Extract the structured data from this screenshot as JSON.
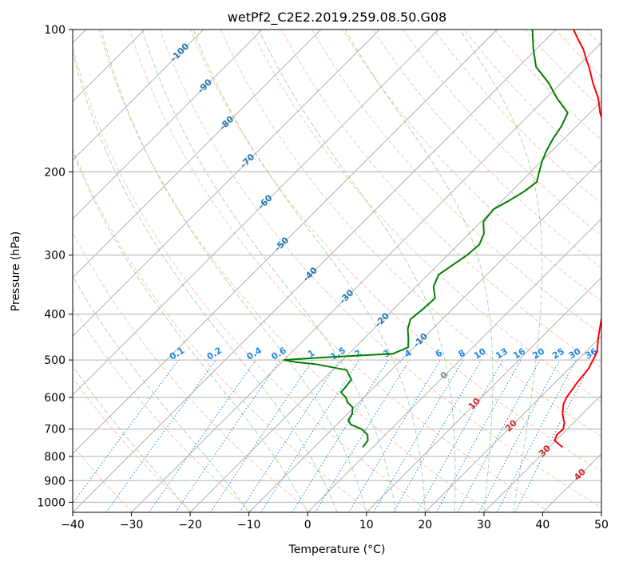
{
  "chart_data": {
    "type": "skew-t",
    "title": "wetPf2_C2E2.2019.259.08.50.G08",
    "xlabel": "Temperature (°C)",
    "ylabel": "Pressure (hPa)",
    "xlim": [
      -40,
      50
    ],
    "ylim": [
      1050,
      100
    ],
    "y_scale": "log",
    "grid": true,
    "x_ticks": [
      "−40",
      "−30",
      "−20",
      "−10",
      "0",
      "10",
      "20",
      "30",
      "40",
      "50"
    ],
    "y_ticks": [
      "100",
      "200",
      "300",
      "400",
      "500",
      "600",
      "700",
      "800",
      "900",
      "1000"
    ],
    "colors": {
      "temperature": "#ff0000",
      "dewpoint": "#008000",
      "mixing_ratio": "#1e88e5",
      "dry_adiabat": "#ff7f50",
      "moist_adiabat": "#2ca02c",
      "isotherm_blue": "#1f77b4",
      "isotherm_red": "#d62728",
      "isotherm_gray": "#7f7f7f"
    },
    "isotherm_labels_blue": [
      "-100",
      "-90",
      "-80",
      "-70",
      "-60",
      "-50",
      "-40",
      "-30",
      "-20",
      "-10"
    ],
    "isotherm_label_gray": "0",
    "isotherm_labels_red": [
      "10",
      "20",
      "30",
      "40"
    ],
    "mixing_ratio_labels": [
      "0.1",
      "0.2",
      "0.4",
      "0.6",
      "1",
      "1.5",
      "2",
      "3",
      "4",
      "6",
      "8",
      "10",
      "13",
      "16",
      "20",
      "25",
      "30",
      "36"
    ],
    "series": [
      {
        "name": "",
        "role": "temperature",
        "p": [
          765,
          740,
          720,
          700,
          680,
          650,
          620,
          600,
          560,
          520,
          480,
          450,
          420,
          400,
          380,
          350,
          320,
          300,
          280,
          260,
          240,
          225,
          210,
          200,
          190,
          180,
          170,
          160,
          150,
          140,
          130,
          120,
          115,
          110,
          105,
          100
        ],
        "t": [
          32.3,
          29.8,
          29.2,
          29.3,
          28.5,
          26.6,
          25.1,
          24.5,
          23.8,
          23.3,
          21.9,
          19.8,
          17.8,
          16.4,
          14.5,
          11.8,
          8.8,
          6.6,
          4.6,
          2.9,
          0.5,
          -1.7,
          -4.2,
          -5.9,
          -7.8,
          -10.0,
          -12.5,
          -15.3,
          -18.3,
          -21.0,
          -24.5,
          -28.0,
          -30.0,
          -32.0,
          -34.5,
          -37.0
        ]
      },
      {
        "name": "",
        "role": "dewpoint",
        "p": [
          765,
          740,
          720,
          700,
          685,
          670,
          650,
          630,
          615,
          600,
          585,
          570,
          550,
          525,
          510,
          505,
          500,
          498,
          495,
          490,
          485,
          470,
          450,
          430,
          410,
          390,
          370,
          350,
          330,
          300,
          285,
          270,
          255,
          240,
          230,
          220,
          210,
          200,
          190,
          180,
          170,
          160,
          150,
          140,
          130,
          120,
          110,
          100
        ],
        "t": [
          -1.7,
          -2.0,
          -3.0,
          -5.0,
          -7.6,
          -8.8,
          -9.2,
          -10.2,
          -11.9,
          -13.1,
          -14.8,
          -14.9,
          -15.2,
          -17.6,
          -24.0,
          -27.7,
          -30.0,
          -28.2,
          -25.0,
          -18.8,
          -12.5,
          -11.0,
          -12.5,
          -14.2,
          -15.4,
          -15.0,
          -14.8,
          -17.0,
          -18.2,
          -16.7,
          -16.4,
          -17.5,
          -19.6,
          -20.0,
          -18.8,
          -17.8,
          -17.3,
          -18.6,
          -19.9,
          -21.0,
          -21.9,
          -22.6,
          -23.8,
          -28.0,
          -32.0,
          -37.0,
          -40.5,
          -44.0
        ]
      }
    ]
  }
}
